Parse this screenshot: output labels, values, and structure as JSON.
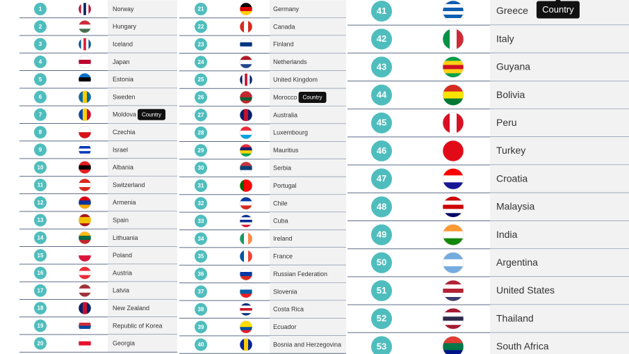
{
  "columns": [
    {
      "rows": [
        {
          "rank": 1,
          "country": "Norway"
        },
        {
          "rank": 2,
          "country": "Hungary"
        },
        {
          "rank": 3,
          "country": "Iceland"
        },
        {
          "rank": 4,
          "country": "Japan"
        },
        {
          "rank": 5,
          "country": "Estonia"
        },
        {
          "rank": 6,
          "country": "Sweden"
        },
        {
          "rank": 7,
          "country": "Moldova",
          "tooltip": "Country"
        },
        {
          "rank": 8,
          "country": "Czechia"
        },
        {
          "rank": 9,
          "country": "Israel"
        },
        {
          "rank": 10,
          "country": "Albania"
        },
        {
          "rank": 11,
          "country": "Switzerland"
        },
        {
          "rank": 12,
          "country": "Armenia"
        },
        {
          "rank": 13,
          "country": "Spain"
        },
        {
          "rank": 14,
          "country": "Lithuania"
        },
        {
          "rank": 15,
          "country": "Poland"
        },
        {
          "rank": 16,
          "country": "Austria"
        },
        {
          "rank": 17,
          "country": "Latvia"
        },
        {
          "rank": 18,
          "country": "New Zealand"
        },
        {
          "rank": 19,
          "country": "Republic of Korea"
        },
        {
          "rank": 20,
          "country": "Georgia"
        }
      ]
    },
    {
      "rows": [
        {
          "rank": 21,
          "country": "Germany"
        },
        {
          "rank": 22,
          "country": "Canada"
        },
        {
          "rank": 23,
          "country": "Finland"
        },
        {
          "rank": 24,
          "country": "Netherlands"
        },
        {
          "rank": 25,
          "country": "United Kingdom"
        },
        {
          "rank": 26,
          "country": "Morocco",
          "tooltip": "Country"
        },
        {
          "rank": 27,
          "country": "Australia"
        },
        {
          "rank": 28,
          "country": "Luxembourg"
        },
        {
          "rank": 29,
          "country": "Mauritius"
        },
        {
          "rank": 30,
          "country": "Serbia"
        },
        {
          "rank": 31,
          "country": "Portugal"
        },
        {
          "rank": 32,
          "country": "Chile"
        },
        {
          "rank": 33,
          "country": "Cuba"
        },
        {
          "rank": 34,
          "country": "Ireland"
        },
        {
          "rank": 35,
          "country": "France"
        },
        {
          "rank": 36,
          "country": "Russian Federation"
        },
        {
          "rank": 37,
          "country": "Slovenia"
        },
        {
          "rank": 38,
          "country": "Costa Rica"
        },
        {
          "rank": 39,
          "country": "Ecuador"
        },
        {
          "rank": 40,
          "country": "Bosnia and Herzegovina"
        }
      ]
    },
    {
      "rows": [
        {
          "rank": 41,
          "country": "Greece",
          "tooltip": "Country"
        },
        {
          "rank": 42,
          "country": "Italy"
        },
        {
          "rank": 43,
          "country": "Guyana"
        },
        {
          "rank": 44,
          "country": "Bolivia"
        },
        {
          "rank": 45,
          "country": "Peru"
        },
        {
          "rank": 46,
          "country": "Turkey"
        },
        {
          "rank": 47,
          "country": "Croatia"
        },
        {
          "rank": 48,
          "country": "Malaysia"
        },
        {
          "rank": 49,
          "country": "India"
        },
        {
          "rank": 50,
          "country": "Argentina"
        },
        {
          "rank": 51,
          "country": "United States"
        },
        {
          "rank": 52,
          "country": "Thailand"
        },
        {
          "rank": 53,
          "country": "South Africa"
        }
      ]
    }
  ]
}
